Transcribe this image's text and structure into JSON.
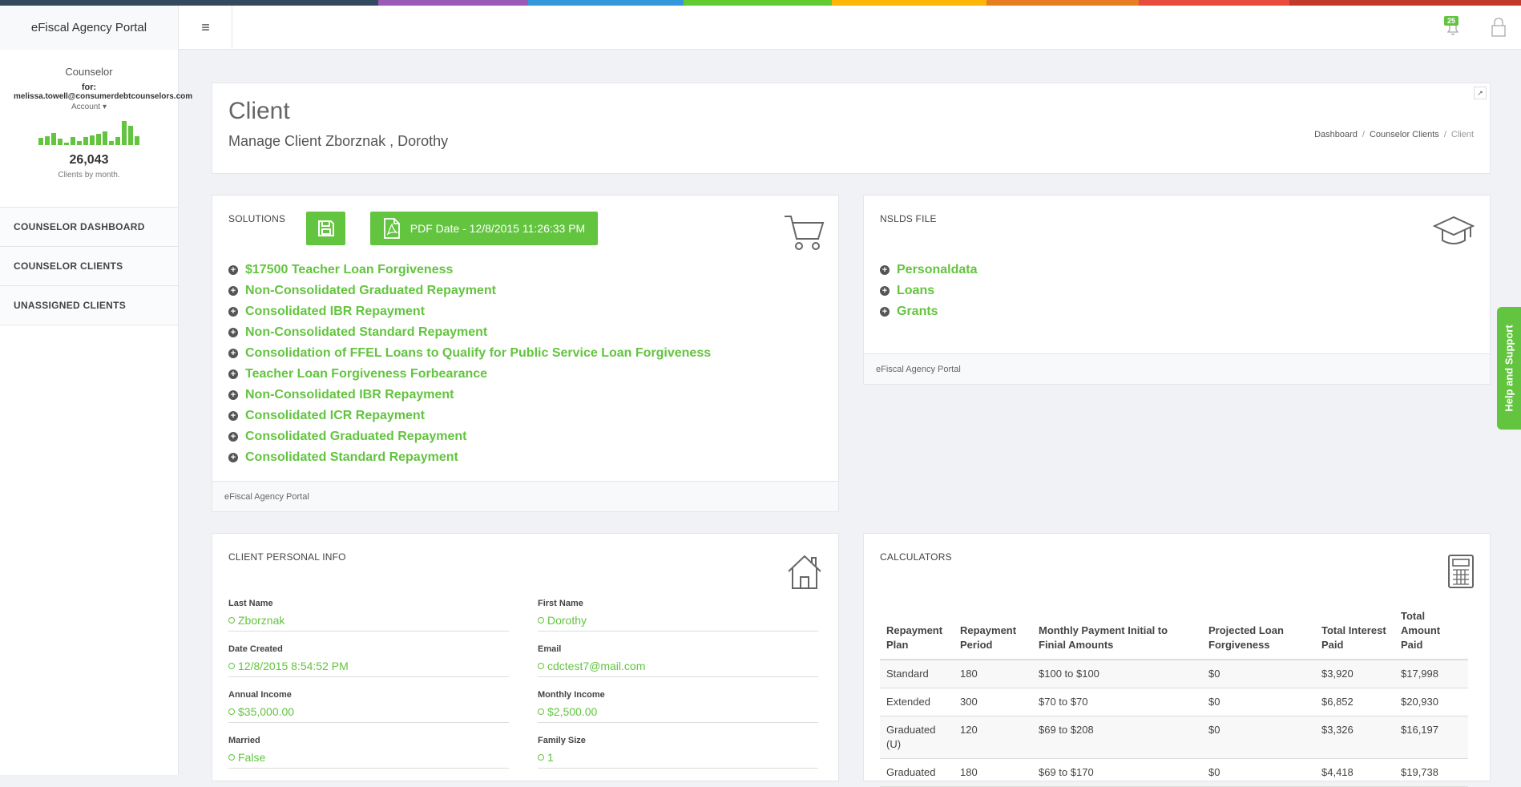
{
  "app": {
    "brand": "eFiscal Agency Portal",
    "notification_count": "25"
  },
  "sidebar": {
    "role": "Counselor",
    "for_label": "for:",
    "email": "melissa.towell@consumerdebtcounselors.com",
    "account_label": "Account",
    "clients_by_month": [
      8,
      10,
      14,
      7,
      3,
      9,
      5,
      9,
      11,
      13,
      16,
      5,
      9,
      28,
      22,
      10
    ],
    "client_count": "26,043",
    "clients_caption": "Clients by month.",
    "nav": [
      "COUNSELOR DASHBOARD",
      "COUNSELOR CLIENTS",
      "UNASSIGNED CLIENTS"
    ]
  },
  "header": {
    "title": "Client",
    "subtitle": "Manage Client Zborznak , Dorothy",
    "breadcrumbs": [
      "Dashboard",
      "Counselor Clients",
      "Client"
    ]
  },
  "solutions": {
    "title": "SOLUTIONS",
    "pdf_label": "PDF Date - 12/8/2015 11:26:33 PM",
    "items": [
      "$17500 Teacher Loan Forgiveness",
      "Non-Consolidated Graduated Repayment",
      "Consolidated IBR Repayment",
      "Non-Consolidated Standard Repayment",
      "Consolidation of FFEL Loans to Qualify for Public Service Loan Forgiveness",
      "Teacher Loan Forgiveness Forbearance",
      "Non-Consolidated IBR Repayment",
      "Consolidated ICR Repayment",
      "Consolidated Graduated Repayment",
      "Consolidated Standard Repayment"
    ],
    "footer": "eFiscal Agency Portal"
  },
  "nslds": {
    "title": "NSLDS FILE",
    "items": [
      "Personaldata",
      "Loans",
      "Grants"
    ],
    "footer": "eFiscal Agency Portal"
  },
  "personal": {
    "title": "CLIENT PERSONAL INFO",
    "fields": [
      {
        "label": "Last Name",
        "value": "Zborznak"
      },
      {
        "label": "First Name",
        "value": "Dorothy"
      },
      {
        "label": "Date Created",
        "value": "12/8/2015 8:54:52 PM"
      },
      {
        "label": "Email",
        "value": "cdctest7@mail.com"
      },
      {
        "label": "Annual Income",
        "value": "$35,000.00"
      },
      {
        "label": "Monthly Income",
        "value": "$2,500.00"
      },
      {
        "label": "Married",
        "value": "False"
      },
      {
        "label": "Family Size",
        "value": "1"
      }
    ]
  },
  "calculators": {
    "title": "CALCULATORS",
    "headers": [
      "Repayment Plan",
      "Repayment Period",
      "Monthly Payment Initial to Finial Amounts",
      "Projected Loan Forgiveness",
      "Total Interest Paid",
      "Total Amount Paid"
    ],
    "rows": [
      [
        "Standard",
        "180",
        "$100 to $100",
        "$0",
        "$3,920",
        "$17,998"
      ],
      [
        "Extended",
        "300",
        "$70 to $70",
        "$0",
        "$6,852",
        "$20,930"
      ],
      [
        "Graduated (U)",
        "120",
        "$69 to $208",
        "$0",
        "$3,326",
        "$16,197"
      ],
      [
        "Graduated",
        "180",
        "$69 to $170",
        "$0",
        "$4,418",
        "$19,738"
      ]
    ]
  },
  "help": {
    "label": "Help and Support"
  },
  "colors": {
    "accent": "#63c43f",
    "topline": [
      "#34495e",
      "#9b59b6",
      "#3498db",
      "#62cb31",
      "#ffb606",
      "#e67e22",
      "#e74c3c",
      "#c0392b"
    ]
  }
}
